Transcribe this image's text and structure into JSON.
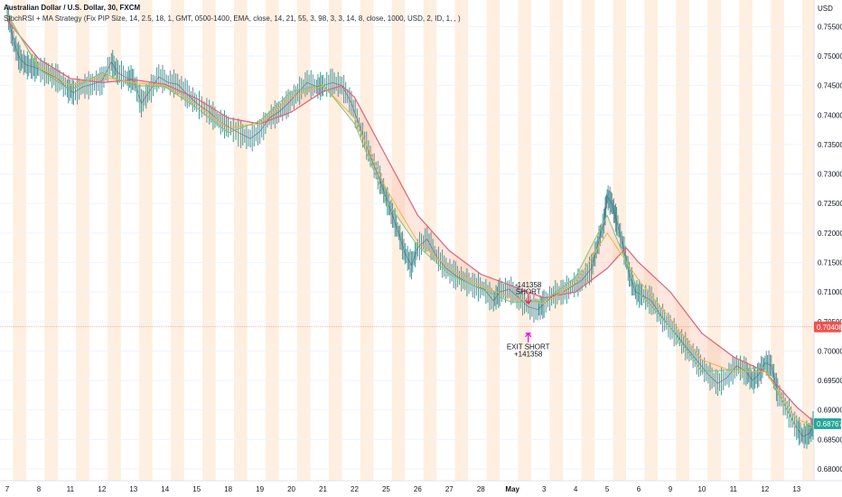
{
  "header": {
    "title": "Australian Dollar / U.S. Dollar, 30, FXCM",
    "indicator": "StochRSI + MA Strategy (Fix PIP Size, 14, 2.5, 18, 1, GMT, 0500-1400, EMA, close, 14, 21, 55, 3, 98, 3, 3, 14, 8, close, 1000, USD, 2, ID, 1, , )"
  },
  "currency_label": "USD",
  "price_tags": [
    {
      "label": "0.70408",
      "value": 0.70408,
      "color": "#ef5350"
    },
    {
      "label": "0.68767",
      "value": 0.68767,
      "color": "#26a69a"
    }
  ],
  "chart_data": {
    "type": "line",
    "ylim": [
      0.678,
      0.7595
    ],
    "y_ticks": [
      0.68,
      0.685,
      0.69,
      0.695,
      0.7,
      0.705,
      0.71,
      0.715,
      0.72,
      0.725,
      0.73,
      0.735,
      0.74,
      0.745,
      0.75,
      0.755
    ],
    "y_tick_labels": [
      "0.68000",
      "0.68500",
      "0.69000",
      "0.69500",
      "0.70000",
      "0.70500",
      "0.71000",
      "0.71500",
      "0.72000",
      "0.72500",
      "0.73000",
      "0.73500",
      "0.74000",
      "0.74500",
      "0.75000",
      "0.75500"
    ],
    "x_ticks": [
      {
        "label": "7",
        "pos": 0
      },
      {
        "label": "8",
        "pos": 1
      },
      {
        "label": "11",
        "pos": 2
      },
      {
        "label": "12",
        "pos": 3
      },
      {
        "label": "13",
        "pos": 4
      },
      {
        "label": "14",
        "pos": 5
      },
      {
        "label": "15",
        "pos": 6
      },
      {
        "label": "18",
        "pos": 7
      },
      {
        "label": "19",
        "pos": 8
      },
      {
        "label": "20",
        "pos": 9
      },
      {
        "label": "21",
        "pos": 10
      },
      {
        "label": "22",
        "pos": 11
      },
      {
        "label": "25",
        "pos": 12
      },
      {
        "label": "26",
        "pos": 13
      },
      {
        "label": "27",
        "pos": 14
      },
      {
        "label": "28",
        "pos": 15
      },
      {
        "label": "May",
        "pos": 16,
        "bold": true
      },
      {
        "label": "3",
        "pos": 17
      },
      {
        "label": "4",
        "pos": 18
      },
      {
        "label": "5",
        "pos": 19
      },
      {
        "label": "6",
        "pos": 20
      },
      {
        "label": "9",
        "pos": 21
      },
      {
        "label": "10",
        "pos": 22
      },
      {
        "label": "11",
        "pos": 23
      },
      {
        "label": "12",
        "pos": 24
      },
      {
        "label": "13",
        "pos": 25
      }
    ],
    "price_series": [
      [
        0,
        0.7575
      ],
      [
        0.2,
        0.7525
      ],
      [
        0.4,
        0.7495
      ],
      [
        0.6,
        0.7485
      ],
      [
        0.8,
        0.7482
      ],
      [
        1.0,
        0.7478
      ],
      [
        1.3,
        0.747
      ],
      [
        1.6,
        0.7462
      ],
      [
        1.9,
        0.7445
      ],
      [
        2.1,
        0.7438
      ],
      [
        2.4,
        0.7448
      ],
      [
        2.7,
        0.7452
      ],
      [
        3.0,
        0.7458
      ],
      [
        3.3,
        0.749
      ],
      [
        3.5,
        0.7472
      ],
      [
        3.8,
        0.7462
      ],
      [
        4.0,
        0.746
      ],
      [
        4.25,
        0.742
      ],
      [
        4.5,
        0.744
      ],
      [
        4.8,
        0.7465
      ],
      [
        5.1,
        0.7455
      ],
      [
        5.4,
        0.7452
      ],
      [
        5.7,
        0.7435
      ],
      [
        6.0,
        0.742
      ],
      [
        6.4,
        0.7405
      ],
      [
        6.7,
        0.739
      ],
      [
        7.0,
        0.738
      ],
      [
        7.4,
        0.7368
      ],
      [
        7.7,
        0.736
      ],
      [
        8.0,
        0.7372
      ],
      [
        8.3,
        0.7395
      ],
      [
        8.6,
        0.7405
      ],
      [
        8.9,
        0.742
      ],
      [
        9.2,
        0.7438
      ],
      [
        9.5,
        0.7455
      ],
      [
        9.8,
        0.7448
      ],
      [
        10.0,
        0.745
      ],
      [
        10.3,
        0.7455
      ],
      [
        10.6,
        0.745
      ],
      [
        10.9,
        0.742
      ],
      [
        11.2,
        0.7375
      ],
      [
        11.5,
        0.733
      ],
      [
        11.8,
        0.729
      ],
      [
        12.0,
        0.726
      ],
      [
        12.2,
        0.723
      ],
      [
        12.4,
        0.72
      ],
      [
        12.6,
        0.7165
      ],
      [
        12.8,
        0.7145
      ],
      [
        13.0,
        0.7175
      ],
      [
        13.3,
        0.719
      ],
      [
        13.6,
        0.716
      ],
      [
        13.9,
        0.714
      ],
      [
        14.2,
        0.7128
      ],
      [
        14.5,
        0.7118
      ],
      [
        14.8,
        0.711
      ],
      [
        15.1,
        0.7105
      ],
      [
        15.4,
        0.7085
      ],
      [
        15.6,
        0.71
      ],
      [
        15.9,
        0.7105
      ],
      [
        16.2,
        0.709
      ],
      [
        16.5,
        0.7075
      ],
      [
        16.8,
        0.707
      ],
      [
        17.0,
        0.708
      ],
      [
        17.3,
        0.7095
      ],
      [
        17.6,
        0.71
      ],
      [
        17.9,
        0.711
      ],
      [
        18.2,
        0.712
      ],
      [
        18.5,
        0.714
      ],
      [
        18.7,
        0.718
      ],
      [
        18.9,
        0.722
      ],
      [
        19.0,
        0.7262
      ],
      [
        19.15,
        0.725
      ],
      [
        19.3,
        0.722
      ],
      [
        19.5,
        0.718
      ],
      [
        19.7,
        0.713
      ],
      [
        19.9,
        0.71
      ],
      [
        20.1,
        0.7095
      ],
      [
        20.4,
        0.7085
      ],
      [
        20.7,
        0.706
      ],
      [
        21.0,
        0.704
      ],
      [
        21.3,
        0.702
      ],
      [
        21.6,
        0.7
      ],
      [
        21.9,
        0.698
      ],
      [
        22.2,
        0.696
      ],
      [
        22.5,
        0.6945
      ],
      [
        22.8,
        0.6955
      ],
      [
        23.1,
        0.6975
      ],
      [
        23.4,
        0.6965
      ],
      [
        23.6,
        0.695
      ],
      [
        23.8,
        0.696
      ],
      [
        24.0,
        0.698
      ],
      [
        24.2,
        0.6975
      ],
      [
        24.4,
        0.693
      ],
      [
        24.7,
        0.69
      ],
      [
        25.0,
        0.687
      ],
      [
        25.2,
        0.6855
      ],
      [
        25.4,
        0.686
      ],
      [
        25.55,
        0.6877
      ]
    ],
    "ma_slow": [
      [
        0,
        0.756
      ],
      [
        1,
        0.7495
      ],
      [
        2,
        0.7462
      ],
      [
        3,
        0.7455
      ],
      [
        4,
        0.746
      ],
      [
        5,
        0.7452
      ],
      [
        6,
        0.7428
      ],
      [
        7,
        0.7395
      ],
      [
        8,
        0.7385
      ],
      [
        9,
        0.7405
      ],
      [
        10,
        0.744
      ],
      [
        10.6,
        0.745
      ],
      [
        11,
        0.743
      ],
      [
        12,
        0.733
      ],
      [
        13,
        0.723
      ],
      [
        14,
        0.717
      ],
      [
        15,
        0.713
      ],
      [
        16,
        0.711
      ],
      [
        17,
        0.709
      ],
      [
        18,
        0.71
      ],
      [
        19,
        0.714
      ],
      [
        19.6,
        0.7175
      ],
      [
        20,
        0.715
      ],
      [
        21,
        0.71
      ],
      [
        22,
        0.703
      ],
      [
        23,
        0.699
      ],
      [
        24,
        0.6965
      ],
      [
        25,
        0.6905
      ],
      [
        25.55,
        0.688
      ]
    ],
    "ma_mid": [
      [
        0,
        0.7568
      ],
      [
        1,
        0.7482
      ],
      [
        2,
        0.745
      ],
      [
        3,
        0.7465
      ],
      [
        4,
        0.7455
      ],
      [
        5,
        0.745
      ],
      [
        6,
        0.7418
      ],
      [
        7,
        0.7378
      ],
      [
        8,
        0.7385
      ],
      [
        9,
        0.743
      ],
      [
        10,
        0.745
      ],
      [
        11,
        0.7395
      ],
      [
        12,
        0.7275
      ],
      [
        13,
        0.7185
      ],
      [
        14,
        0.714
      ],
      [
        15,
        0.711
      ],
      [
        16,
        0.709
      ],
      [
        17,
        0.708
      ],
      [
        18,
        0.7115
      ],
      [
        19,
        0.72
      ],
      [
        20,
        0.712
      ],
      [
        21,
        0.7055
      ],
      [
        22,
        0.6985
      ],
      [
        23,
        0.6965
      ],
      [
        24,
        0.6965
      ],
      [
        25,
        0.6885
      ],
      [
        25.55,
        0.6872
      ]
    ],
    "ma_fast": [
      [
        0,
        0.7572
      ],
      [
        1,
        0.7478
      ],
      [
        2,
        0.7442
      ],
      [
        3,
        0.7472
      ],
      [
        4,
        0.745
      ],
      [
        5,
        0.7448
      ],
      [
        6,
        0.7412
      ],
      [
        7,
        0.737
      ],
      [
        8,
        0.739
      ],
      [
        9,
        0.744
      ],
      [
        10,
        0.7452
      ],
      [
        11,
        0.7385
      ],
      [
        12,
        0.7255
      ],
      [
        13,
        0.7178
      ],
      [
        14,
        0.713
      ],
      [
        15,
        0.7105
      ],
      [
        16,
        0.7082
      ],
      [
        17,
        0.7085
      ],
      [
        18,
        0.7125
      ],
      [
        19,
        0.723
      ],
      [
        20,
        0.71
      ],
      [
        21,
        0.704
      ],
      [
        22,
        0.6965
      ],
      [
        23,
        0.6968
      ],
      [
        24,
        0.6972
      ],
      [
        25,
        0.6868
      ],
      [
        25.55,
        0.687
      ]
    ],
    "annotations": [
      {
        "text": "-141358",
        "x": 16.5,
        "y": 0.7108
      },
      {
        "text": "SHORT",
        "x": 16.5,
        "y": 0.7096
      },
      {
        "text": "EXIT SHORT",
        "x": 16.5,
        "y": 0.7003
      },
      {
        "text": "+141358",
        "x": 16.5,
        "y": 0.6991
      }
    ],
    "signal_arrows": [
      {
        "type": "short",
        "x": 16.5,
        "y": 0.708,
        "color": "#e91e63"
      },
      {
        "type": "exit",
        "x": 16.5,
        "y": 0.703,
        "color": "#e600e6"
      }
    ]
  }
}
